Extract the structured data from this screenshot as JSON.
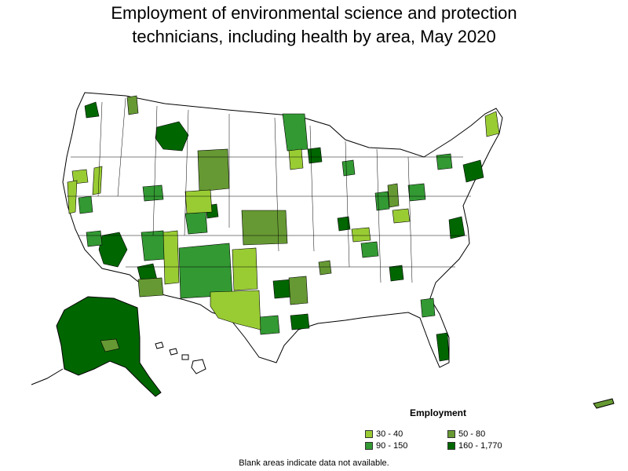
{
  "title_line1": "Employment of environmental science and protection",
  "title_line2": "technicians, including health by area, May 2020",
  "legend": {
    "title": "Employment",
    "items": [
      {
        "label": "30 - 40",
        "color": "#99cc33"
      },
      {
        "label": "50 - 80",
        "color": "#669933"
      },
      {
        "label": "90 - 150",
        "color": "#339933"
      },
      {
        "label": "160 - 1,770",
        "color": "#006600"
      }
    ]
  },
  "footnote": "Blank areas indicate data not available.",
  "colors": {
    "blank": "#ffffff",
    "border": "#000000"
  }
}
